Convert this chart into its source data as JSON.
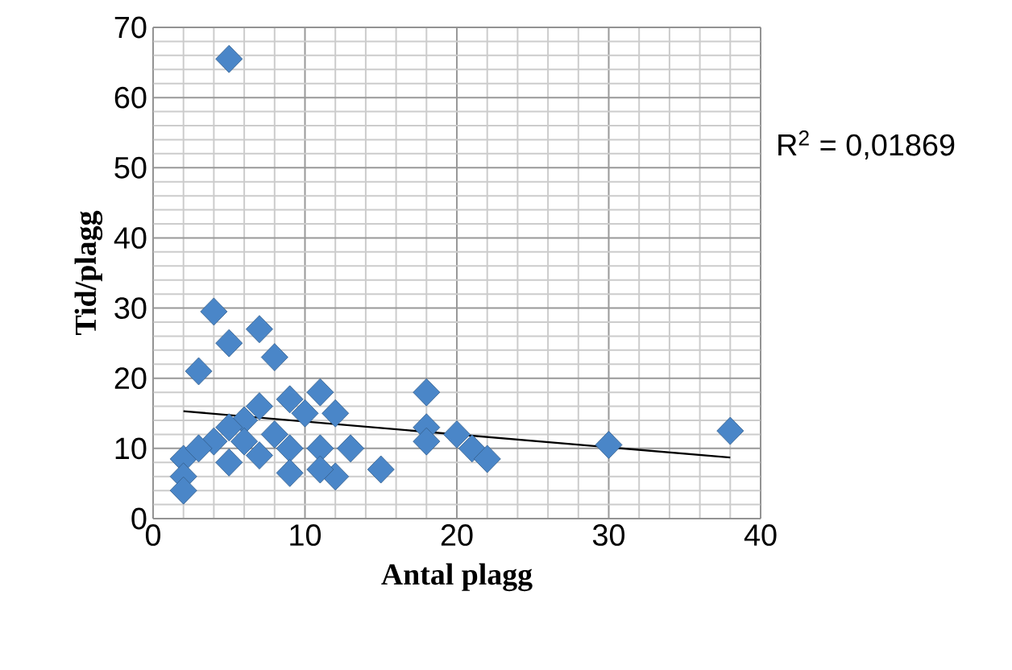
{
  "chart_data": {
    "type": "scatter",
    "xlabel": "Antal plagg",
    "ylabel": "Tid/plagg",
    "annotations": [
      "R$^{2}$ = 0,01869"
    ],
    "xlim": [
      0,
      40
    ],
    "xticks": [
      0,
      10,
      20,
      30,
      40
    ],
    "ylim": [
      0,
      70
    ],
    "yticks": [
      0,
      10,
      20,
      30,
      40,
      50,
      60,
      70
    ],
    "grid": true,
    "marker": "diamond",
    "series": [
      {
        "color": "#4a86c8",
        "x": [
          5,
          4,
          7,
          5,
          8,
          3,
          18,
          11,
          9,
          7,
          6,
          10,
          12,
          18,
          20,
          5,
          8,
          4,
          2,
          3,
          6,
          11,
          13,
          9,
          7,
          5,
          18,
          21,
          22,
          15,
          12,
          9,
          11,
          2,
          2,
          30,
          38
        ],
        "values": [
          65.5,
          29.5,
          27,
          25,
          23,
          21,
          18,
          18,
          17,
          16,
          14,
          15,
          15,
          13,
          12,
          13,
          12,
          11,
          8.5,
          10,
          11,
          10,
          10,
          10,
          9,
          8,
          11,
          10,
          8.5,
          7,
          6,
          6.5,
          7,
          6,
          4,
          10.5,
          12.5
        ]
      },
      {
        "type": "line",
        "color": "#000000",
        "marker": "none",
        "x": [
          2,
          38
        ],
        "values": [
          15.3,
          8.7
        ]
      }
    ]
  }
}
